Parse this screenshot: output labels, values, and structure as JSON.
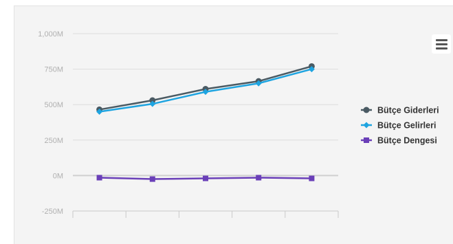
{
  "chart_data": {
    "type": "line",
    "title": "",
    "xlabel": "",
    "ylabel": "",
    "categories": [
      "",
      "",
      "",
      "",
      ""
    ],
    "y_ticks": [
      "-250M",
      "0M",
      "250M",
      "500M",
      "750M",
      "1,000M"
    ],
    "ylim": [
      -250,
      1000
    ],
    "grid": true,
    "legend_position": "right",
    "series": [
      {
        "name": "Bütçe Giderleri",
        "color": "#4a5a63",
        "marker": "circle",
        "values": [
          465,
          530,
          610,
          665,
          770
        ]
      },
      {
        "name": "Bütçe Gelirleri",
        "color": "#1ea4e0",
        "marker": "diamond",
        "values": [
          450,
          505,
          590,
          650,
          750
        ]
      },
      {
        "name": "Bütçe Dengesi",
        "color": "#6a3fb8",
        "marker": "square",
        "values": [
          -15,
          -25,
          -20,
          -15,
          -20
        ]
      }
    ]
  },
  "toolbar": {
    "menu_icon": "hamburger-menu-icon"
  }
}
